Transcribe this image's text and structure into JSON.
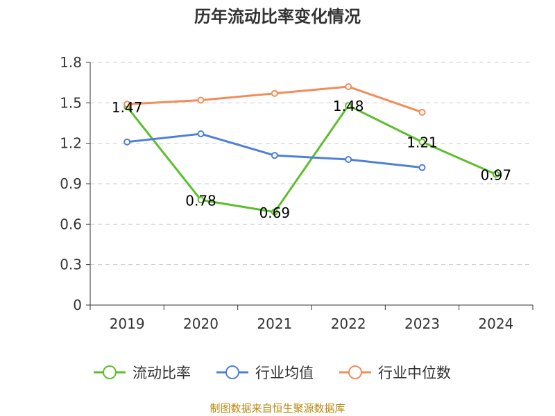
{
  "chart_data": {
    "type": "line",
    "title": "历年流动比率变化情况",
    "categories": [
      "2019",
      "2020",
      "2021",
      "2022",
      "2023",
      "2024"
    ],
    "ylim": [
      0,
      1.8
    ],
    "yticks": [
      "0",
      "0.3",
      "0.6",
      "0.9",
      "1.2",
      "1.5",
      "1.8"
    ],
    "grid": true,
    "legend_position": "bottom",
    "series": [
      {
        "name": "流动比率",
        "color": "#5cbf2a",
        "values": [
          1.47,
          0.78,
          0.69,
          1.48,
          1.21,
          0.97
        ],
        "labels": [
          "1.47",
          "0.78",
          "0.69",
          "1.48",
          "1.21",
          "0.97"
        ]
      },
      {
        "name": "行业均值",
        "color": "#4e7fd9",
        "values": [
          1.21,
          1.27,
          1.11,
          1.08,
          1.02,
          null
        ]
      },
      {
        "name": "行业中位数",
        "color": "#f28c5a",
        "values": [
          1.49,
          1.52,
          1.57,
          1.62,
          1.43,
          null
        ]
      }
    ]
  },
  "footer": {
    "source": "制图数据来自恒生聚源数据库"
  }
}
